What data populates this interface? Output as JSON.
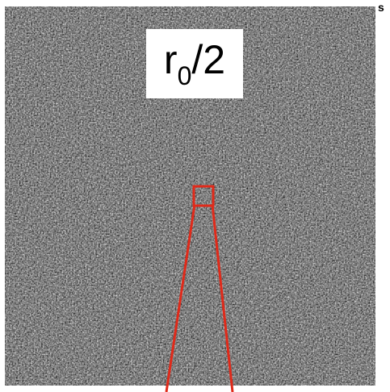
{
  "image": {
    "description_type": "grayscale-speckle-noise-field",
    "label": {
      "base": "r",
      "subscript": "0",
      "suffix": "/2"
    },
    "corner_label": "s",
    "accent_color": "#e02a1a",
    "label_background": "#ffffff"
  }
}
